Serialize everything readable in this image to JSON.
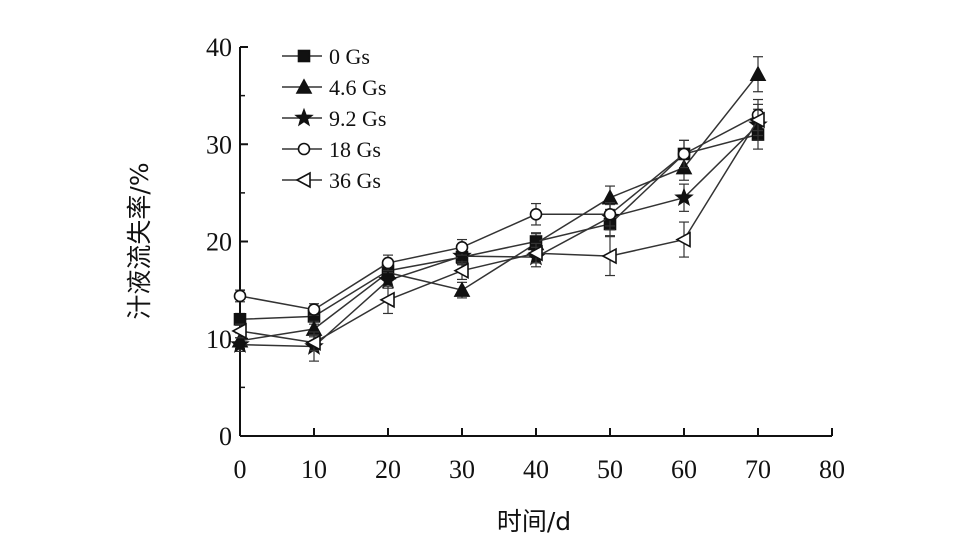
{
  "chart_data": {
    "type": "line",
    "title": "",
    "xlabel": "时间/d",
    "ylabel": "汁液流失率/%",
    "xlim": [
      0,
      80
    ],
    "ylim": [
      0,
      40
    ],
    "x_ticks": [
      "0",
      "10",
      "20",
      "30",
      "40",
      "50",
      "60",
      "70",
      "80"
    ],
    "y_ticks": [
      "0",
      "10",
      "20",
      "30",
      "40"
    ],
    "legend_position": "top-left",
    "grid": false,
    "x": [
      0,
      10,
      20,
      30,
      40,
      50,
      60,
      70
    ],
    "series": [
      {
        "name": "0 Gs",
        "marker": "square-filled",
        "values": [
          12.0,
          12.3,
          17.0,
          18.4,
          20.0,
          21.8,
          29.0,
          31.0
        ],
        "errors": [
          0.6,
          0.8,
          0.8,
          0.8,
          0.9,
          1.2,
          1.4,
          1.5
        ]
      },
      {
        "name": "4.6 Gs",
        "marker": "triangle-filled",
        "values": [
          9.8,
          11.0,
          16.8,
          15.0,
          19.8,
          24.5,
          27.6,
          37.2
        ],
        "errors": [
          0.8,
          0.8,
          0.8,
          0.8,
          1.0,
          1.2,
          1.3,
          1.8
        ]
      },
      {
        "name": "9.2 Gs",
        "marker": "star-filled",
        "values": [
          9.4,
          9.2,
          16.0,
          18.5,
          18.4,
          22.5,
          24.5,
          32.0
        ],
        "errors": [
          0.7,
          1.5,
          0.8,
          0.8,
          1.0,
          1.3,
          1.4,
          1.6
        ]
      },
      {
        "name": "18 Gs",
        "marker": "circle-open",
        "values": [
          14.4,
          13.0,
          17.8,
          19.4,
          22.8,
          22.8,
          29.0,
          33.0
        ],
        "errors": [
          0.6,
          0.6,
          0.8,
          0.8,
          1.1,
          1.2,
          1.4,
          1.6
        ]
      },
      {
        "name": "36 Gs",
        "marker": "triangle-left-open",
        "values": [
          10.8,
          9.6,
          14.0,
          17.0,
          18.8,
          18.5,
          20.2,
          32.5
        ],
        "errors": [
          0.7,
          0.8,
          1.4,
          0.9,
          1.0,
          2.0,
          1.8,
          1.6
        ]
      }
    ]
  }
}
